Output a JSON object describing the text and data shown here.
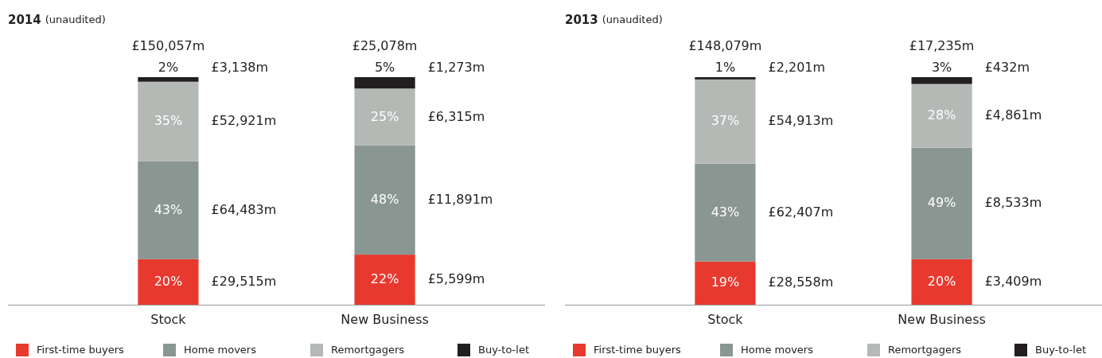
{
  "chart_data": [
    {
      "type": "bar",
      "title": "2014",
      "subtitle": "(unaudited)",
      "categories": [
        "Stock",
        "New Business"
      ],
      "stacked": true,
      "ylim": [
        0,
        100
      ],
      "legend": "bottom",
      "series": [
        {
          "name": "First-time buyers",
          "color": "#e8392f",
          "values": [
            20,
            22
          ],
          "value_labels": [
            "20%",
            "22%"
          ]
        },
        {
          "name": "Home movers",
          "color": "#8a9691",
          "values": [
            43,
            48
          ],
          "value_labels": [
            "43%",
            "48%"
          ]
        },
        {
          "name": "Remortgagers",
          "color": "#b4b9b6",
          "values": [
            35,
            25
          ],
          "value_labels": [
            "35%",
            "25%"
          ]
        },
        {
          "name": "Buy-to-let",
          "color": "#231f20",
          "values": [
            2,
            5
          ],
          "value_labels": [
            "2%",
            "5%"
          ]
        }
      ],
      "annotations": [
        "£150,057m",
        "£29,515m",
        "£64,483m",
        "£52,921m",
        "£3,138m",
        "£25,078m",
        "£5,599m",
        "£11,891m",
        "£6,315m",
        "£1,273m"
      ]
    },
    {
      "type": "bar",
      "title": "2013",
      "subtitle": "(unaudited)",
      "categories": [
        "Stock",
        "New Business"
      ],
      "stacked": true,
      "ylim": [
        0,
        100
      ],
      "legend": "bottom",
      "series": [
        {
          "name": "First-time buyers",
          "color": "#e8392f",
          "values": [
            19,
            20
          ],
          "value_labels": [
            "19%",
            "20%"
          ]
        },
        {
          "name": "Home movers",
          "color": "#8a9691",
          "values": [
            43,
            49
          ],
          "value_labels": [
            "43%",
            "49%"
          ]
        },
        {
          "name": "Remortgagers",
          "color": "#b4b9b6",
          "values": [
            37,
            28
          ],
          "value_labels": [
            "37%",
            "28%"
          ]
        },
        {
          "name": "Buy-to-let",
          "color": "#231f20",
          "values": [
            1,
            3
          ],
          "value_labels": [
            "1%",
            "3%"
          ]
        }
      ],
      "annotations": [
        "£148,079m",
        "£28,558m",
        "£62,407m",
        "£54,913m",
        "£2,201m",
        "£17,235m",
        "£3,409m",
        "£8,533m",
        "£4,861m",
        "£432m"
      ]
    }
  ]
}
